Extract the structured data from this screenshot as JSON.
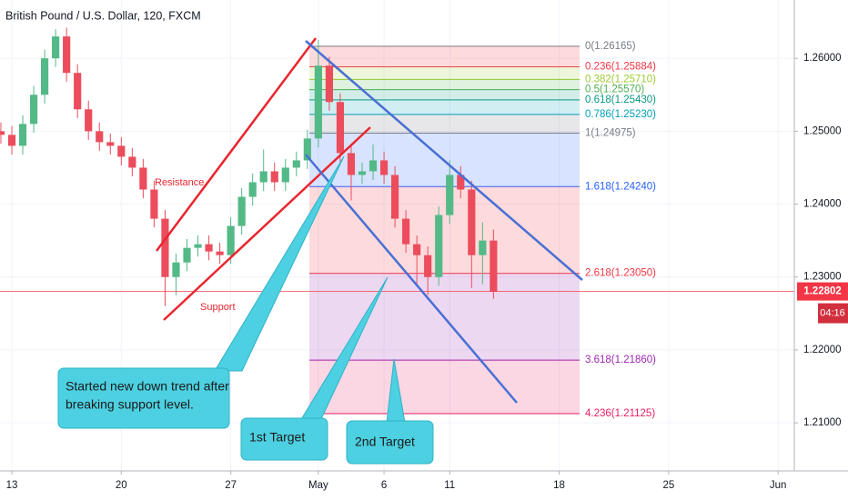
{
  "chart_data": {
    "type": "candlestick",
    "title": "British Pound / U.S. Dollar, 120, FXCM",
    "x": [
      -0.5,
      0,
      0.5,
      1,
      1.5,
      2,
      2.5,
      3,
      3.5,
      4,
      4.5,
      5,
      5.5,
      6,
      6.5,
      7,
      7.5,
      8,
      8.5,
      9,
      9.5,
      10,
      10.5,
      11,
      11.5,
      12,
      12.5,
      13,
      13.5,
      14,
      14.5,
      15,
      15.5,
      16,
      16.5,
      17,
      17.5,
      18,
      18.5,
      19,
      19.5,
      20,
      20.5,
      21,
      21.5,
      22
    ],
    "open": [
      1.25,
      1.2495,
      1.248,
      1.251,
      1.255,
      1.26,
      1.263,
      1.258,
      1.253,
      1.25,
      1.2485,
      1.248,
      1.2465,
      1.245,
      1.242,
      1.238,
      1.23,
      1.232,
      1.234,
      1.2345,
      1.2335,
      1.233,
      1.237,
      1.241,
      1.243,
      1.2445,
      1.243,
      1.245,
      1.246,
      1.249,
      1.259,
      1.254,
      1.247,
      1.244,
      1.2445,
      1.246,
      1.244,
      1.238,
      1.2345,
      1.233,
      1.23,
      1.2385,
      1.244,
      1.242,
      1.233,
      1.235
    ],
    "high": [
      1.2512,
      1.2507,
      1.2522,
      1.2562,
      1.2612,
      1.264,
      1.2642,
      1.2592,
      1.2542,
      1.2512,
      1.2497,
      1.2492,
      1.2477,
      1.2462,
      1.2432,
      1.2392,
      1.2332,
      1.2352,
      1.2357,
      1.2357,
      1.2347,
      1.2382,
      1.2422,
      1.2442,
      1.2475,
      1.2457,
      1.2462,
      1.2472,
      1.2502,
      1.2625,
      1.2602,
      1.2552,
      1.2482,
      1.2457,
      1.2482,
      1.2472,
      1.2452,
      1.2392,
      1.2357,
      1.2342,
      1.2397,
      1.246,
      1.2452,
      1.2432,
      1.2375,
      1.2365
    ],
    "low": [
      1.2483,
      1.2468,
      1.2468,
      1.2498,
      1.2538,
      1.2588,
      1.2568,
      1.2518,
      1.2488,
      1.2473,
      1.2468,
      1.2453,
      1.2438,
      1.2408,
      1.2368,
      1.226,
      1.2275,
      1.2308,
      1.2328,
      1.2323,
      1.2318,
      1.2318,
      1.2358,
      1.2398,
      1.2418,
      1.2418,
      1.2418,
      1.2438,
      1.2448,
      1.2478,
      1.2528,
      1.2458,
      1.2405,
      1.2428,
      1.2433,
      1.2428,
      1.2368,
      1.2333,
      1.229,
      1.2275,
      1.2288,
      1.2373,
      1.2408,
      1.2285,
      1.229,
      1.227
    ],
    "close": [
      1.2495,
      1.248,
      1.251,
      1.255,
      1.26,
      1.263,
      1.258,
      1.253,
      1.25,
      1.2485,
      1.248,
      1.2465,
      1.245,
      1.242,
      1.238,
      1.23,
      1.232,
      1.234,
      1.2345,
      1.2335,
      1.233,
      1.237,
      1.241,
      1.243,
      1.2445,
      1.243,
      1.245,
      1.246,
      1.249,
      1.259,
      1.254,
      1.247,
      1.244,
      1.2445,
      1.246,
      1.244,
      1.238,
      1.2345,
      1.233,
      1.23,
      1.2385,
      1.244,
      1.242,
      1.233,
      1.235,
      1.228
    ],
    "up_color": "#53b987",
    "down_color": "#eb4d5c",
    "xlim": [
      -0.54,
      35.74
    ],
    "xticks": [
      {
        "value": 0,
        "label": "13"
      },
      {
        "value": 5,
        "label": "20"
      },
      {
        "value": 10,
        "label": "27"
      },
      {
        "value": 14,
        "label": "May"
      },
      {
        "value": 17,
        "label": "6"
      },
      {
        "value": 20,
        "label": "11"
      },
      {
        "value": 25,
        "label": "18"
      },
      {
        "value": 30,
        "label": "25"
      },
      {
        "value": 35,
        "label": "Jun"
      }
    ],
    "ylim": [
      1.2034,
      1.268
    ],
    "yticks": [
      {
        "value": 1.21,
        "label": "1.21000"
      },
      {
        "value": 1.22,
        "label": "1.22000"
      },
      {
        "value": 1.23,
        "label": "1.23000"
      },
      {
        "value": 1.24,
        "label": "1.24000"
      },
      {
        "value": 1.25,
        "label": "1.25000"
      },
      {
        "value": 1.26,
        "label": "1.26000"
      }
    ],
    "grid": true,
    "last_price": {
      "value": 1.22802,
      "label": "1.22802"
    },
    "last_price_color": "#f23645",
    "countdown": "04:16",
    "fib_levels": [
      {
        "value": 1.26165,
        "label": "0(1.26165)",
        "color": "#787b86"
      },
      {
        "value": 1.25884,
        "label": "0.236(1.25884)",
        "color": "#f23645"
      },
      {
        "value": 1.2571,
        "label": "0.382(1.25710)",
        "color": "#9ccc32"
      },
      {
        "value": 1.2557,
        "label": "0.5(1.25570)",
        "color": "#4caf50"
      },
      {
        "value": 1.2543,
        "label": "0.618(1.25430)",
        "color": "#089981"
      },
      {
        "value": 1.2523,
        "label": "0.786(1.25230)",
        "color": "#00a0b8"
      },
      {
        "value": 1.24975,
        "label": "1(1.24975)",
        "color": "#787b86"
      },
      {
        "value": 1.2424,
        "label": "1.618(1.24240)",
        "color": "#2962ff"
      },
      {
        "value": 1.2305,
        "label": "2.618(1.23050)",
        "color": "#f23645"
      },
      {
        "value": 1.2186,
        "label": "3.618(1.21860)",
        "color": "#9c27b0"
      },
      {
        "value": 1.21125,
        "label": "4.236(1.21125)",
        "color": "#e91e63"
      }
    ],
    "annotations": {
      "resistance": "Resistance",
      "support": "Support",
      "callout": [
        "Started new down trend after",
        "breaking support level."
      ],
      "target1": "1st Target",
      "target2": "2nd Target"
    }
  }
}
